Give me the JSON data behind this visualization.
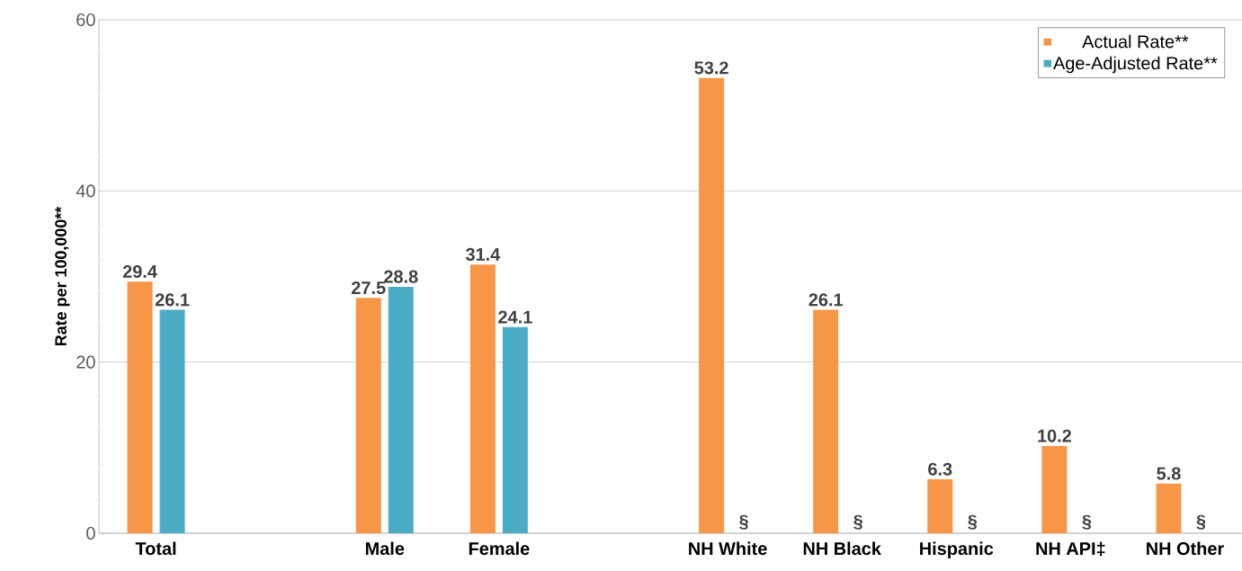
{
  "chart_data": {
    "type": "bar",
    "ylabel": "Rate per 100,000**",
    "categories": [
      "Total",
      null,
      "Male",
      "Female",
      null,
      "NH White",
      "NH Black",
      "Hispanic",
      "NH API‡",
      "NH Other"
    ],
    "series": [
      {
        "name": "Actual Rate**",
        "color": "#f79646",
        "values": [
          29.4,
          null,
          27.5,
          31.4,
          null,
          53.2,
          26.1,
          6.3,
          10.2,
          5.8
        ],
        "value_labels": [
          "29.4",
          null,
          "27.5",
          "31.4",
          null,
          "53.2",
          "26.1",
          "6.3",
          "10.2",
          "5.8"
        ]
      },
      {
        "name": "Age-Adjusted Rate**",
        "color": "#4bacc6",
        "values": [
          26.1,
          null,
          28.8,
          24.1,
          null,
          null,
          null,
          null,
          null,
          null
        ],
        "value_labels": [
          "26.1",
          null,
          "28.8",
          "24.1",
          null,
          "§",
          "§",
          "§",
          "§",
          "§"
        ]
      }
    ],
    "ylim": [
      0,
      60
    ],
    "yticks": [
      0,
      {
        "value": 4,
        "label": null
      },
      {
        "value": 8,
        "label": null
      },
      {
        "value": 12,
        "label": null
      },
      {
        "value": 16,
        "label": null
      },
      20,
      {
        "value": 24,
        "label": null
      },
      {
        "value": 28,
        "label": null
      },
      {
        "value": 32,
        "label": null
      },
      {
        "value": 36,
        "label": null
      },
      40,
      {
        "value": 44,
        "label": null
      },
      {
        "value": 48,
        "label": null
      },
      {
        "value": 52,
        "label": null
      },
      {
        "value": 56,
        "label": null
      },
      60
    ],
    "grid": "y",
    "legend": "top right"
  }
}
